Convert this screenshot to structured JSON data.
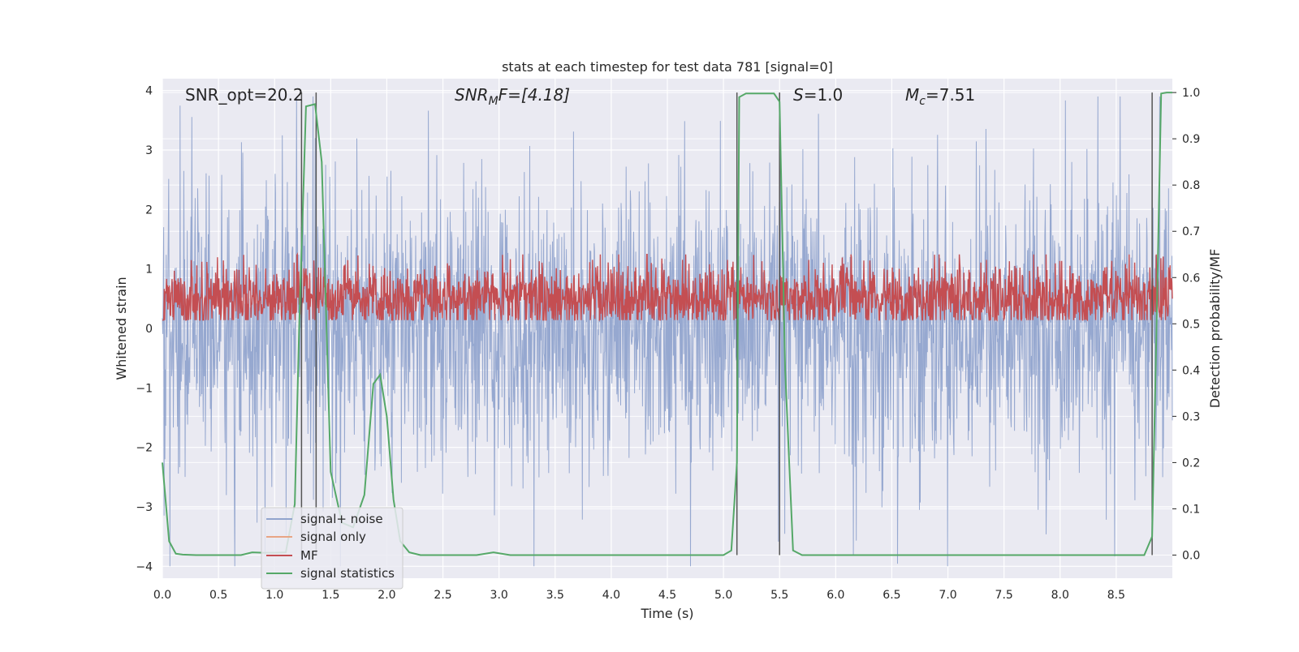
{
  "chart_data": {
    "type": "line",
    "title": "stats at each timestep for test data 781 [signal=0]",
    "xlabel": "Time (s)",
    "ylabel": "Whitened strain",
    "y2label": "Detection probability/MF",
    "xlim": [
      0.0,
      9.0
    ],
    "ylim": [
      -4.2,
      4.2
    ],
    "y2lim": [
      -0.05,
      1.03
    ],
    "xticks": [
      "0.0",
      "0.5",
      "1.0",
      "1.5",
      "2.0",
      "2.5",
      "3.0",
      "3.5",
      "4.0",
      "4.5",
      "5.0",
      "5.5",
      "6.0",
      "6.5",
      "7.0",
      "7.5",
      "8.0",
      "8.5"
    ],
    "yticks": [
      "4",
      "3",
      "2",
      "1",
      "0",
      "−1",
      "−2",
      "−3",
      "−4"
    ],
    "y2ticks": [
      "1.0",
      "0.9",
      "0.8",
      "0.7",
      "0.6",
      "0.5",
      "0.4",
      "0.3",
      "0.2",
      "0.1",
      "0.0"
    ],
    "grid": true,
    "legend_position": "lower-left",
    "annotations": {
      "snr_opt": "SNR_opt=20.2",
      "snr_mf_base": "SNR",
      "snr_mf_sub": "M",
      "snr_mf_rest": "F=[4.18]",
      "s_base": "S",
      "s_rest": "=1.0",
      "mc_base": "M",
      "mc_sub": "c",
      "mc_rest": "=7.51"
    },
    "vertical_lines_x": [
      1.24,
      1.37,
      5.12,
      5.5,
      8.82
    ],
    "series": [
      {
        "name": "signal+ noise",
        "color": "#91a4cd",
        "description_values": "noise samples in whitened strain, approx. within [-4, 4]"
      },
      {
        "name": "signal only",
        "color": "#e8a584",
        "values": []
      },
      {
        "name": "MF",
        "color": "#c44e52",
        "range": [
          0.0,
          1.0
        ]
      },
      {
        "name": "signal statistics",
        "color": "#55a868",
        "x": [
          0.0,
          0.06,
          0.12,
          0.18,
          0.3,
          0.5,
          0.7,
          0.8,
          0.9,
          1.0,
          1.1,
          1.18,
          1.22,
          1.28,
          1.36,
          1.42,
          1.5,
          1.6,
          1.7,
          1.8,
          1.88,
          1.94,
          2.0,
          2.06,
          2.12,
          2.2,
          2.3,
          2.5,
          2.8,
          2.95,
          3.1,
          3.5,
          4.0,
          4.5,
          5.0,
          5.07,
          5.12,
          5.14,
          5.2,
          5.3,
          5.45,
          5.5,
          5.55,
          5.62,
          5.7,
          6.0,
          7.0,
          8.0,
          8.75,
          8.82,
          8.86,
          8.9,
          8.95,
          9.0
        ],
        "values": [
          0.2,
          0.03,
          0.003,
          0.001,
          0.0,
          0.0,
          0.0,
          0.006,
          0.005,
          0.005,
          0.006,
          0.11,
          0.5,
          0.97,
          0.975,
          0.85,
          0.18,
          0.07,
          0.06,
          0.13,
          0.37,
          0.39,
          0.3,
          0.12,
          0.03,
          0.006,
          0.0,
          0.0,
          0.0,
          0.006,
          0.0,
          0.0,
          0.0,
          0.0,
          0.0,
          0.01,
          0.2,
          0.99,
          0.998,
          0.998,
          0.998,
          0.98,
          0.4,
          0.01,
          0.0,
          0.0,
          0.0,
          0.0,
          0.0,
          0.04,
          0.5,
          0.998,
          1.0,
          1.0
        ]
      }
    ]
  },
  "legend": {
    "items": [
      {
        "label": "signal+ noise",
        "color": "#91a4cd"
      },
      {
        "label": "signal only",
        "color": "#e8a584"
      },
      {
        "label": "MF",
        "color": "#c44e52"
      },
      {
        "label": "signal statistics",
        "color": "#55a868"
      }
    ]
  },
  "colors": {
    "axes_bg": "#eaeaf2",
    "grid": "#ffffff",
    "vline": "#555555"
  }
}
